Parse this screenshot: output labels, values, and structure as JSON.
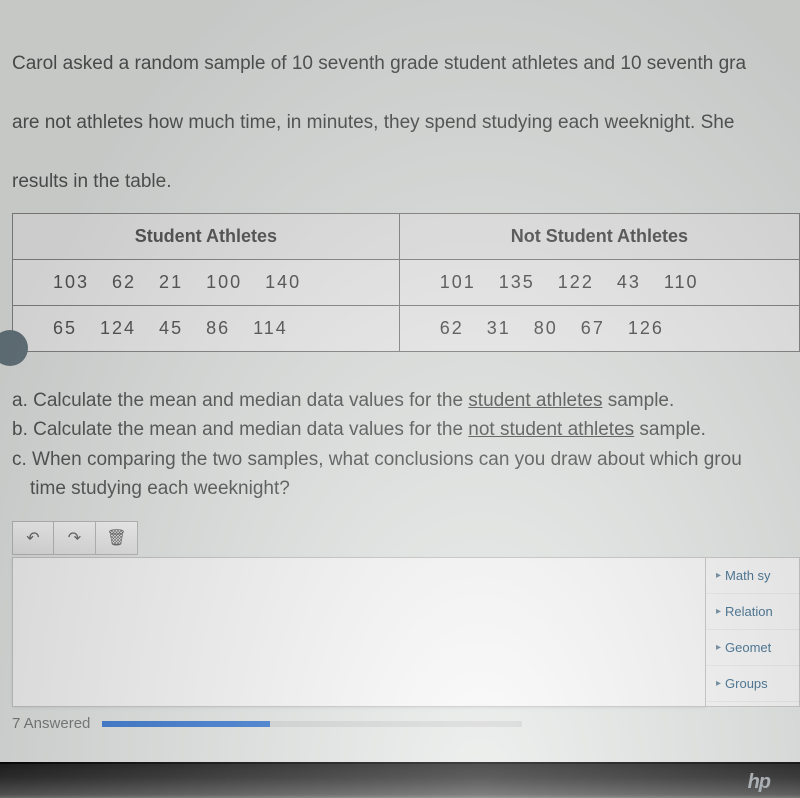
{
  "question": {
    "intro_lines": [
      "Carol asked a random sample of 10 seventh grade student athletes and 10 seventh gra",
      "are not athletes how much time, in minutes, they spend studying each weeknight. She",
      "results in the table."
    ]
  },
  "table": {
    "type": "table",
    "columns": [
      "Student Athletes",
      "Not Student Athletes"
    ],
    "rows": [
      [
        "103   62   21   100   140",
        "101   135   122   43   110"
      ],
      [
        "65   124   45   86   114",
        "62   31   80   67   126"
      ]
    ],
    "border_color": "#888888",
    "header_bg": "#efefef",
    "cell_bg": "#f4f5f4",
    "font_size": 18
  },
  "parts": {
    "a": {
      "prefix": "a. ",
      "text_before": "Calculate the mean and median data values for the ",
      "underline": "student athletes",
      "text_after": " sample."
    },
    "b": {
      "prefix": "b. ",
      "text_before": "Calculate the mean and median data values for the ",
      "underline": "not student athletes",
      "text_after": " sample."
    },
    "c_line1": "c. When comparing the two samples, what conclusions can you draw about which grou",
    "c_line2": "time studying each weeknight?"
  },
  "toolbar": {
    "undo_glyph": "↶",
    "redo_glyph": "↷",
    "trash_glyph": "🗑"
  },
  "side_panel": {
    "items": [
      "Math sy",
      "Relation",
      "Geomet",
      "Groups"
    ],
    "caret_glyph": "▸",
    "text_color": "#3b6d8f"
  },
  "footer": {
    "answered_label": "7 Answered",
    "progress_percent": 40,
    "progress_fill_color": "#3a7bd5",
    "progress_bg_color": "#d7d9d8"
  },
  "branding": {
    "logo_text": "hp"
  },
  "colors": {
    "page_bg": "#e8ebe9",
    "body_text": "#555555"
  }
}
